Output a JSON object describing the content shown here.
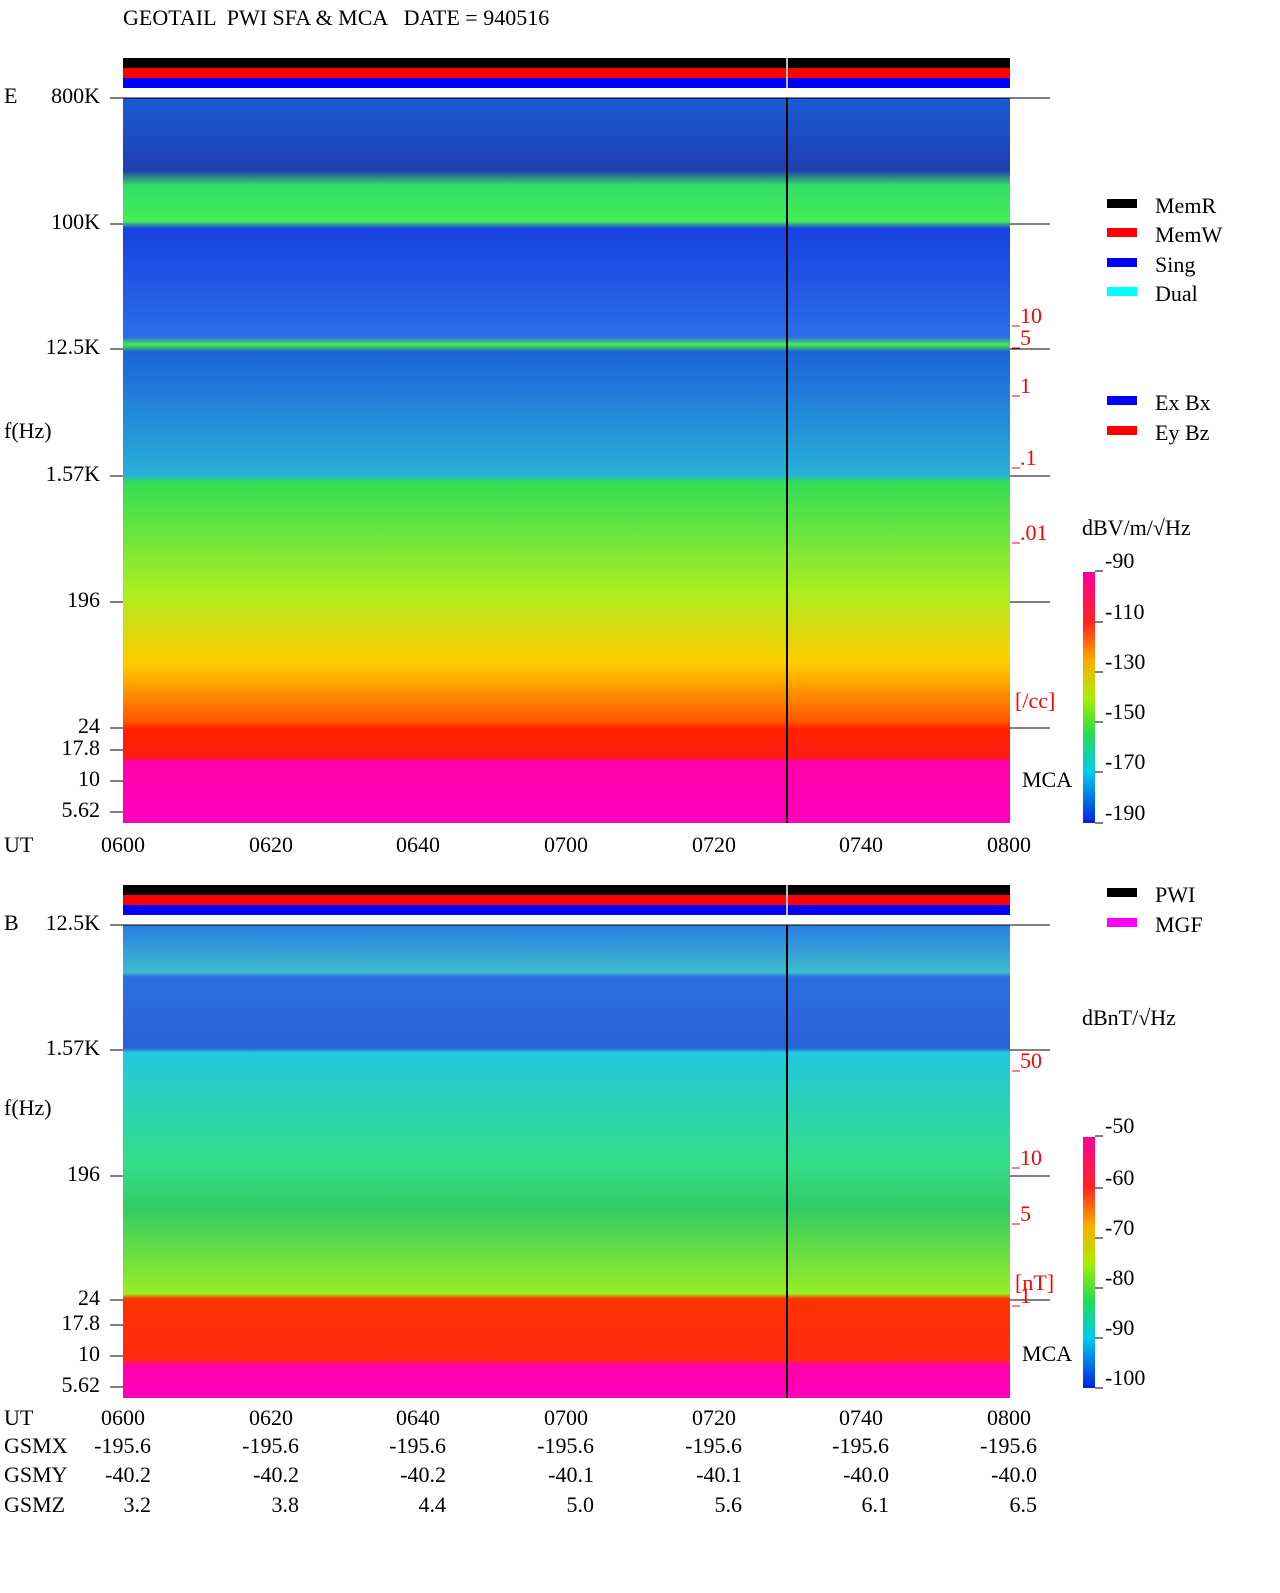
{
  "title": "GEOTAIL  PWI SFA & MCA   DATE = 940516",
  "panels": [
    {
      "label": "E",
      "y_label": "f(Hz)",
      "y_ticks": [
        "800K",
        "100K",
        "12.5K",
        "1.57K",
        "196",
        "24",
        "17.8",
        "10",
        "5.62"
      ],
      "x_label": "UT",
      "x_ticks": [
        "0600",
        "0620",
        "0640",
        "0700",
        "0720",
        "0740",
        "0800"
      ],
      "legend": [
        {
          "label": "MemR",
          "color": "#000000"
        },
        {
          "label": "MemW",
          "color": "#ff0000"
        },
        {
          "label": "Sing",
          "color": "#0000ff"
        },
        {
          "label": "Dual",
          "color": "#00ffff"
        }
      ],
      "legend2": [
        {
          "label": "Ex Bx",
          "color": "#0000ff"
        },
        {
          "label": "Ey Bz",
          "color": "#ff0000"
        }
      ],
      "units": "dBV/m/√Hz",
      "colorbar_ticks": [
        "-90",
        "-110",
        "-130",
        "-150",
        "-170",
        "-190"
      ],
      "scale_ticks": [
        "10",
        "5",
        "1",
        ".1",
        ".01"
      ],
      "scale_unit": "[/cc]",
      "mca": "MCA"
    },
    {
      "label": "B",
      "y_label": "f(Hz)",
      "y_ticks": [
        "12.5K",
        "1.57K",
        "196",
        "24",
        "17.8",
        "10",
        "5.62"
      ],
      "x_label": "UT",
      "x_ticks": [
        "0600",
        "0620",
        "0640",
        "0700",
        "0720",
        "0740",
        "0800"
      ],
      "legend": [
        {
          "label": "PWI",
          "color": "#000000"
        },
        {
          "label": "MGF",
          "color": "#ff00ff"
        }
      ],
      "units": "dBnT/√Hz",
      "colorbar_ticks": [
        "-50",
        "-60",
        "-70",
        "-80",
        "-90",
        "-100"
      ],
      "scale_ticks": [
        "50",
        "10",
        "5",
        "1"
      ],
      "scale_unit": "[nT]",
      "mca": "MCA"
    }
  ],
  "orbit": [
    {
      "label": "GSMX",
      "values": [
        "-195.6",
        "-195.6",
        "-195.6",
        "-195.6",
        "-195.6",
        "-195.6",
        "-195.6"
      ]
    },
    {
      "label": "GSMY",
      "values": [
        "-40.2",
        "-40.2",
        "-40.2",
        "-40.1",
        "-40.1",
        "-40.0",
        "-40.0"
      ]
    },
    {
      "label": "GSMZ",
      "values": [
        "3.2",
        "3.8",
        "4.4",
        "5.0",
        "5.6",
        "6.1",
        "6.5"
      ]
    }
  ]
}
